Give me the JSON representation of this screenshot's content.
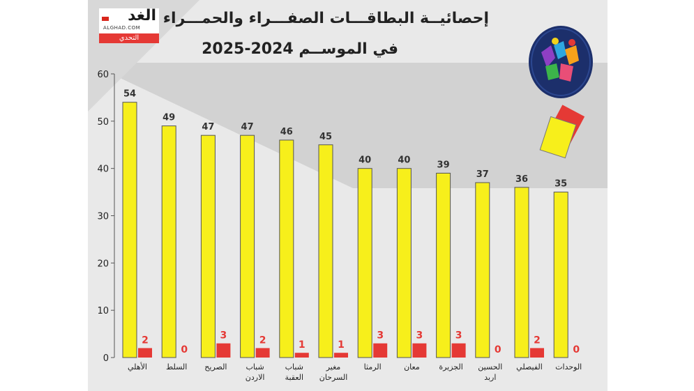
{
  "logo": {
    "name": "الغد",
    "domain": "ALGHAD.COM",
    "tag": "التحدي"
  },
  "chart_data": {
    "type": "bar",
    "title": "إحصائيــة البطاقـــات الصفـــراء والحمـــراء",
    "subtitle": "في الموســم 2024-2025",
    "xlabel": "",
    "ylabel": "",
    "ylim": [
      0,
      60
    ],
    "yticks": [
      0,
      10,
      20,
      30,
      40,
      50,
      60
    ],
    "grid": false,
    "categories": [
      [
        "الأهلي"
      ],
      [
        "السلط"
      ],
      [
        "الصريح"
      ],
      [
        "شباب",
        "الاردن"
      ],
      [
        "شباب",
        "العقبة"
      ],
      [
        "مغير",
        "السرحان"
      ],
      [
        "الرمثا"
      ],
      [
        "معان"
      ],
      [
        "الجزيرة"
      ],
      [
        "الحسين",
        "اربد"
      ],
      [
        "الفيصلي"
      ],
      [
        "الوحدات"
      ]
    ],
    "series": [
      {
        "color": "#f7ef1b",
        "values": [
          54,
          49,
          47,
          47,
          46,
          45,
          40,
          40,
          39,
          37,
          36,
          35
        ]
      },
      {
        "color": "#e53935",
        "values": [
          2,
          0,
          3,
          2,
          1,
          1,
          3,
          3,
          3,
          0,
          2,
          0
        ]
      }
    ]
  }
}
